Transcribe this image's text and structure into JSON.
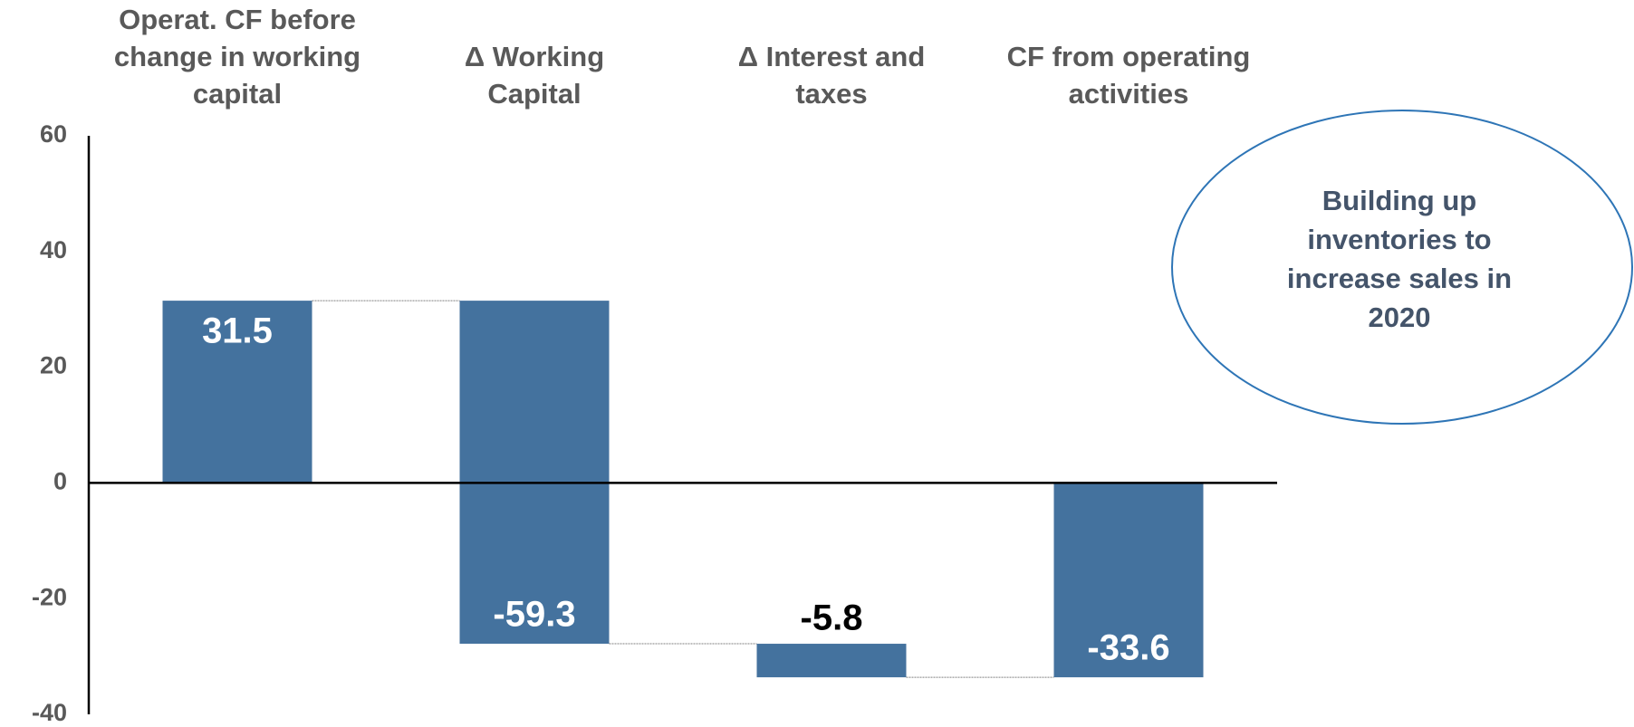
{
  "chart_data": {
    "type": "waterfall",
    "categories": [
      "Operat. CF before\nchange in working\ncapital",
      "Δ Working\nCapital",
      "Δ Interest and\ntaxes",
      "CF from operating\nactivities"
    ],
    "values": [
      31.5,
      -59.3,
      -5.8,
      -33.6
    ],
    "color": "#44729e",
    "ylim": [
      -40,
      60
    ],
    "yticks": [
      -40,
      -20,
      0,
      20,
      40,
      60
    ],
    "grid": false,
    "annotation": "Building up\ninventories to\nincrease sales in\n2020"
  }
}
